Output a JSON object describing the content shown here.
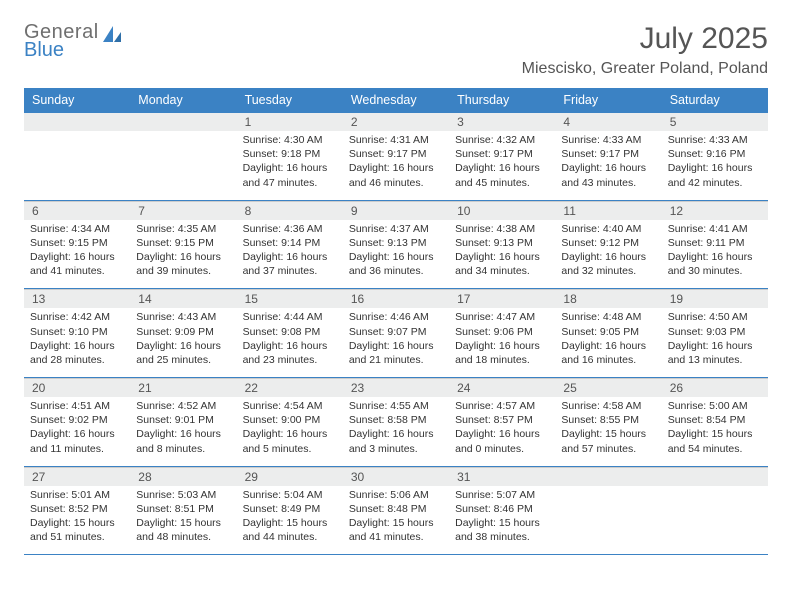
{
  "logo": {
    "line1": "General",
    "line2": "Blue"
  },
  "header": {
    "month_title": "July 2025",
    "location": "Miescisko, Greater Poland, Poland"
  },
  "colors": {
    "brand_blue": "#3b82c4",
    "header_gray": "#eceded",
    "text_gray": "#555555",
    "body_text": "#333333",
    "background": "#ffffff"
  },
  "calendar": {
    "day_names": [
      "Sunday",
      "Monday",
      "Tuesday",
      "Wednesday",
      "Thursday",
      "Friday",
      "Saturday"
    ],
    "weeks": [
      [
        null,
        null,
        {
          "n": "1",
          "sunrise": "4:30 AM",
          "sunset": "9:18 PM",
          "daylight": "16 hours and 47 minutes."
        },
        {
          "n": "2",
          "sunrise": "4:31 AM",
          "sunset": "9:17 PM",
          "daylight": "16 hours and 46 minutes."
        },
        {
          "n": "3",
          "sunrise": "4:32 AM",
          "sunset": "9:17 PM",
          "daylight": "16 hours and 45 minutes."
        },
        {
          "n": "4",
          "sunrise": "4:33 AM",
          "sunset": "9:17 PM",
          "daylight": "16 hours and 43 minutes."
        },
        {
          "n": "5",
          "sunrise": "4:33 AM",
          "sunset": "9:16 PM",
          "daylight": "16 hours and 42 minutes."
        }
      ],
      [
        {
          "n": "6",
          "sunrise": "4:34 AM",
          "sunset": "9:15 PM",
          "daylight": "16 hours and 41 minutes."
        },
        {
          "n": "7",
          "sunrise": "4:35 AM",
          "sunset": "9:15 PM",
          "daylight": "16 hours and 39 minutes."
        },
        {
          "n": "8",
          "sunrise": "4:36 AM",
          "sunset": "9:14 PM",
          "daylight": "16 hours and 37 minutes."
        },
        {
          "n": "9",
          "sunrise": "4:37 AM",
          "sunset": "9:13 PM",
          "daylight": "16 hours and 36 minutes."
        },
        {
          "n": "10",
          "sunrise": "4:38 AM",
          "sunset": "9:13 PM",
          "daylight": "16 hours and 34 minutes."
        },
        {
          "n": "11",
          "sunrise": "4:40 AM",
          "sunset": "9:12 PM",
          "daylight": "16 hours and 32 minutes."
        },
        {
          "n": "12",
          "sunrise": "4:41 AM",
          "sunset": "9:11 PM",
          "daylight": "16 hours and 30 minutes."
        }
      ],
      [
        {
          "n": "13",
          "sunrise": "4:42 AM",
          "sunset": "9:10 PM",
          "daylight": "16 hours and 28 minutes."
        },
        {
          "n": "14",
          "sunrise": "4:43 AM",
          "sunset": "9:09 PM",
          "daylight": "16 hours and 25 minutes."
        },
        {
          "n": "15",
          "sunrise": "4:44 AM",
          "sunset": "9:08 PM",
          "daylight": "16 hours and 23 minutes."
        },
        {
          "n": "16",
          "sunrise": "4:46 AM",
          "sunset": "9:07 PM",
          "daylight": "16 hours and 21 minutes."
        },
        {
          "n": "17",
          "sunrise": "4:47 AM",
          "sunset": "9:06 PM",
          "daylight": "16 hours and 18 minutes."
        },
        {
          "n": "18",
          "sunrise": "4:48 AM",
          "sunset": "9:05 PM",
          "daylight": "16 hours and 16 minutes."
        },
        {
          "n": "19",
          "sunrise": "4:50 AM",
          "sunset": "9:03 PM",
          "daylight": "16 hours and 13 minutes."
        }
      ],
      [
        {
          "n": "20",
          "sunrise": "4:51 AM",
          "sunset": "9:02 PM",
          "daylight": "16 hours and 11 minutes."
        },
        {
          "n": "21",
          "sunrise": "4:52 AM",
          "sunset": "9:01 PM",
          "daylight": "16 hours and 8 minutes."
        },
        {
          "n": "22",
          "sunrise": "4:54 AM",
          "sunset": "9:00 PM",
          "daylight": "16 hours and 5 minutes."
        },
        {
          "n": "23",
          "sunrise": "4:55 AM",
          "sunset": "8:58 PM",
          "daylight": "16 hours and 3 minutes."
        },
        {
          "n": "24",
          "sunrise": "4:57 AM",
          "sunset": "8:57 PM",
          "daylight": "16 hours and 0 minutes."
        },
        {
          "n": "25",
          "sunrise": "4:58 AM",
          "sunset": "8:55 PM",
          "daylight": "15 hours and 57 minutes."
        },
        {
          "n": "26",
          "sunrise": "5:00 AM",
          "sunset": "8:54 PM",
          "daylight": "15 hours and 54 minutes."
        }
      ],
      [
        {
          "n": "27",
          "sunrise": "5:01 AM",
          "sunset": "8:52 PM",
          "daylight": "15 hours and 51 minutes."
        },
        {
          "n": "28",
          "sunrise": "5:03 AM",
          "sunset": "8:51 PM",
          "daylight": "15 hours and 48 minutes."
        },
        {
          "n": "29",
          "sunrise": "5:04 AM",
          "sunset": "8:49 PM",
          "daylight": "15 hours and 44 minutes."
        },
        {
          "n": "30",
          "sunrise": "5:06 AM",
          "sunset": "8:48 PM",
          "daylight": "15 hours and 41 minutes."
        },
        {
          "n": "31",
          "sunrise": "5:07 AM",
          "sunset": "8:46 PM",
          "daylight": "15 hours and 38 minutes."
        },
        null,
        null
      ]
    ],
    "labels": {
      "sunrise": "Sunrise:",
      "sunset": "Sunset:",
      "daylight": "Daylight:"
    }
  }
}
